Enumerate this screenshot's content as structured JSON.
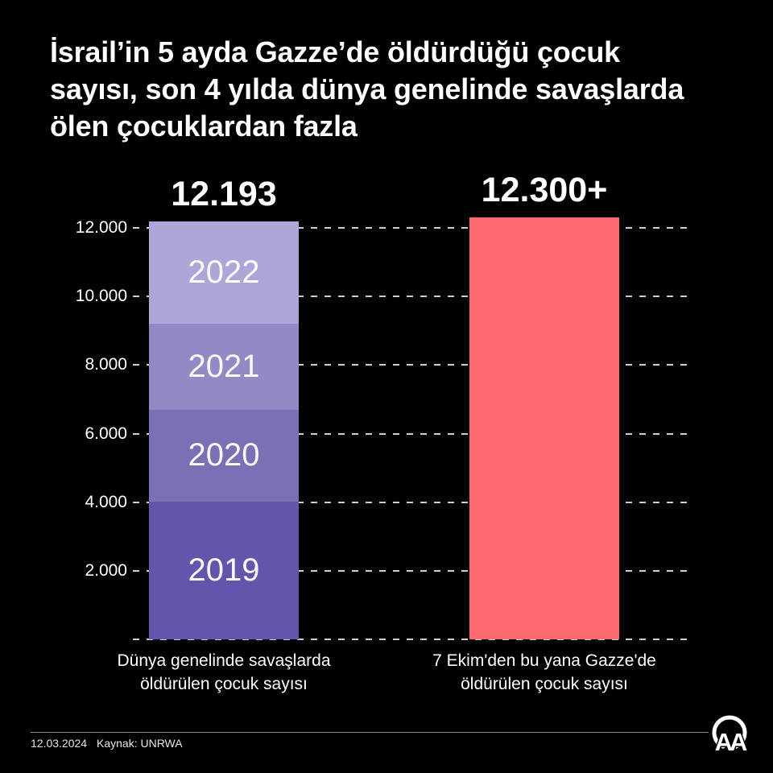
{
  "page": {
    "background": "#000000"
  },
  "header": {
    "title": "İsrail’in 5 ayda Gazze’de öldürdüğü çocuk\nsayısı, son 4 yılda dünya genelinde savaşlarda\nölen çocuklardan fazla"
  },
  "chart_data": {
    "type": "bar",
    "stacked": "left bar only",
    "grid": "dashed horizontal lines, dark background",
    "ylim": [
      0,
      12900
    ],
    "segment_values_estimated_from_gridlines": true,
    "yticks": [
      {
        "value": 12000,
        "label": "12.000"
      },
      {
        "value": 10000,
        "label": "10.000"
      },
      {
        "value": 8000,
        "label": "8.000"
      },
      {
        "value": 6000,
        "label": "6.000"
      },
      {
        "value": 4000,
        "label": "4.000"
      },
      {
        "value": 2000,
        "label": "2.000"
      },
      {
        "value": 0,
        "label": ""
      }
    ],
    "bars": [
      {
        "name": "world-wars-last-4-years",
        "category_label": "Dünya genelinde savaşlarda\nöldürülen çocuk sayısı",
        "total_label": "12.193",
        "total_value": 12193,
        "stacked": true,
        "segments": [
          {
            "label": "2019",
            "value": 4019,
            "color": "#6156ab"
          },
          {
            "label": "2020",
            "value": 2674,
            "color": "#7a70b5"
          },
          {
            "label": "2021",
            "value": 2515,
            "color": "#9289c5"
          },
          {
            "label": "2022",
            "value": 2985,
            "color": "#aea6d8"
          }
        ]
      },
      {
        "name": "gaza-since-oct-7",
        "category_label": "7 Ekim'den bu yana Gazze'de\nöldürülen çocuk sayısı",
        "total_label": "12.300+",
        "total_value": 12300,
        "stacked": false,
        "color": "#fd6b70"
      }
    ]
  },
  "footer": {
    "date": "12.03.2024",
    "source": "Kaynak: UNRWA",
    "logo": "anadolu-agency-aa-logo"
  }
}
